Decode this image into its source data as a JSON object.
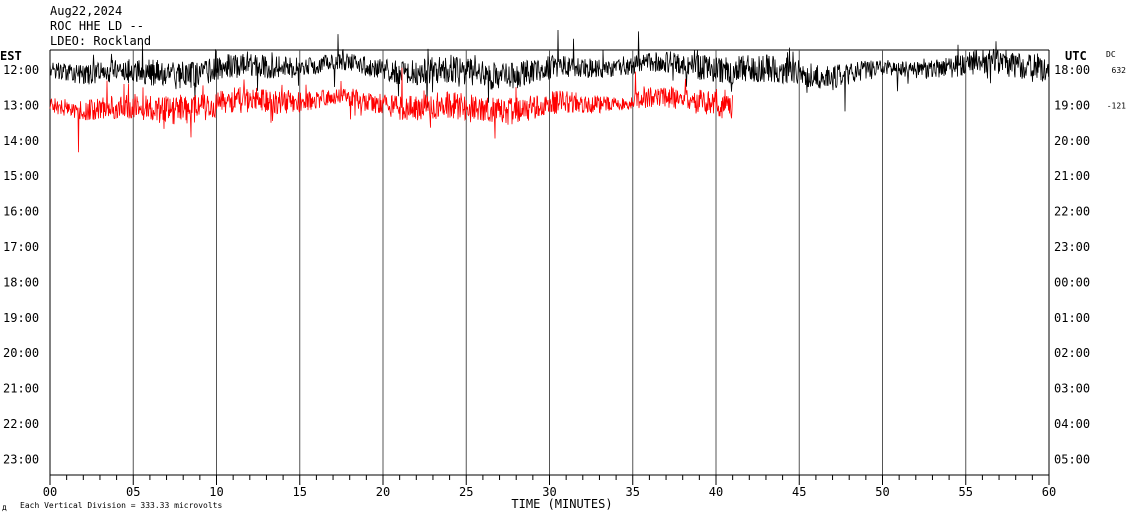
{
  "header": {
    "date": "Aug22,2024",
    "station": "ROC HHE LD --",
    "network": "LDEO: Rockland"
  },
  "left_timezone": "EST",
  "right_timezone": "UTC",
  "dc_label": "DC",
  "footer": {
    "scale_note": "Each Vertical Division =  333.33 microvolts",
    "mark": "д"
  },
  "chart_data": {
    "type": "line",
    "title": "",
    "xlabel": "TIME (MINUTES)",
    "xlim": [
      0,
      60
    ],
    "x_major_ticks": [
      "00",
      "05",
      "10",
      "15",
      "20",
      "25",
      "30",
      "35",
      "40",
      "45",
      "50",
      "55",
      "60"
    ],
    "left_hour_labels": [
      "12:00",
      "13:00",
      "14:00",
      "15:00",
      "16:00",
      "17:00",
      "18:00",
      "19:00",
      "20:00",
      "21:00",
      "22:00",
      "23:00"
    ],
    "right_hour_labels": [
      "18:00",
      "19:00",
      "20:00",
      "21:00",
      "22:00",
      "23:00",
      "00:00",
      "01:00",
      "02:00",
      "03:00",
      "04:00",
      "05:00"
    ],
    "dc_offsets": [
      "632",
      "-121"
    ],
    "grid": true,
    "series": [
      {
        "trace_row": 0,
        "start_minute": 0,
        "end_minute": 60,
        "color": "#000000"
      },
      {
        "trace_row": 1,
        "start_minute": 0,
        "end_minute": 41,
        "color": "#ff0000"
      }
    ]
  }
}
